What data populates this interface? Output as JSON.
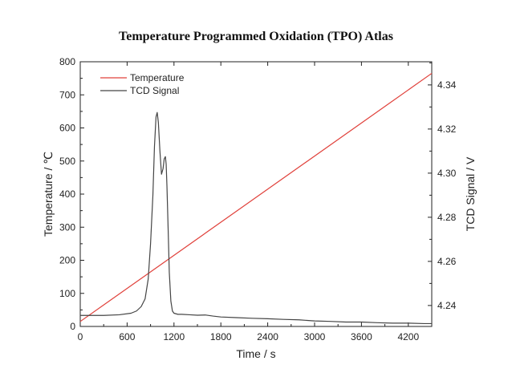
{
  "chart_data": {
    "type": "line",
    "title": "Temperature Programmed Oxidation (TPO) Atlas",
    "xlabel": "Time / s",
    "ylabel_left": "Temperature / ℃",
    "ylabel_right": "TCD Signal / V",
    "xlim": [
      0,
      4500
    ],
    "ylim_left": [
      0,
      800
    ],
    "ylim_right": [
      4.2305,
      4.3505
    ],
    "x_ticks": [
      0,
      600,
      1200,
      1800,
      2400,
      3000,
      3600,
      4200
    ],
    "y_left_ticks": [
      0,
      100,
      200,
      300,
      400,
      500,
      600,
      700,
      800
    ],
    "y_right_ticks": [
      "4.24",
      "4.26",
      "4.28",
      "4.30",
      "4.32",
      "4.34"
    ],
    "legend": [
      {
        "label": "Temperature",
        "color": "#e0403a"
      },
      {
        "label": "TCD Signal",
        "color": "#444444"
      }
    ],
    "legend_position": "top-left",
    "series": [
      {
        "name": "Temperature",
        "axis": "left",
        "color": "#e0403a",
        "x": [
          0,
          4500
        ],
        "y": [
          15,
          765
        ]
      },
      {
        "name": "TCD Signal",
        "axis": "right",
        "color": "#444444",
        "x": [
          0,
          300,
          500,
          650,
          720,
          780,
          830,
          870,
          900,
          930,
          950,
          970,
          985,
          1000,
          1020,
          1040,
          1060,
          1075,
          1090,
          1100,
          1110,
          1125,
          1140,
          1160,
          1180,
          1200,
          1250,
          1300,
          1400,
          1500,
          1600,
          1700,
          1800,
          2000,
          2200,
          2400,
          2600,
          2800,
          3000,
          3200,
          3400,
          3600,
          3800,
          4000,
          4200,
          4400,
          4500
        ],
        "y": [
          4.2355,
          4.2355,
          4.2358,
          4.2365,
          4.2375,
          4.2395,
          4.243,
          4.252,
          4.268,
          4.29,
          4.312,
          4.3255,
          4.3275,
          4.323,
          4.31,
          4.2995,
          4.302,
          4.3065,
          4.3075,
          4.304,
          4.294,
          4.275,
          4.255,
          4.242,
          4.2375,
          4.2365,
          4.236,
          4.236,
          4.2358,
          4.2356,
          4.2357,
          4.2352,
          4.2348,
          4.2345,
          4.2342,
          4.234,
          4.2337,
          4.2335,
          4.233,
          4.2328,
          4.2325,
          4.2325,
          4.2322,
          4.232,
          4.232,
          4.2318,
          4.2318
        ]
      }
    ]
  }
}
